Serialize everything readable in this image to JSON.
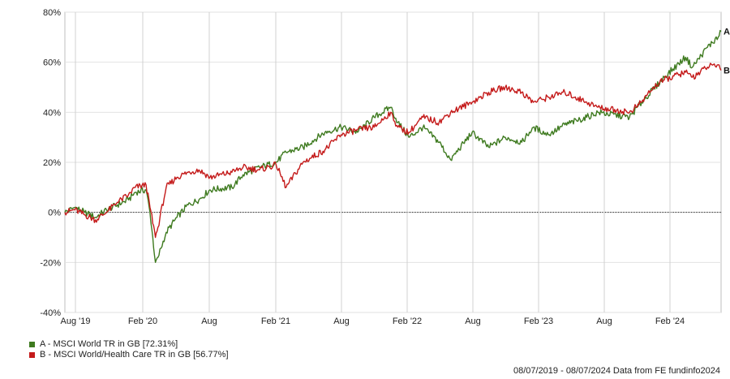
{
  "chart_data": {
    "type": "line",
    "y_unit": "%",
    "ylim": [
      -40,
      80
    ],
    "y_ticks": [
      "80%",
      "60%",
      "40%",
      "20%",
      "0%",
      "-20%",
      "-40%"
    ],
    "x_ticks": [
      "Aug '19",
      "Feb '20",
      "Aug",
      "Feb '21",
      "Aug",
      "Feb '22",
      "Aug",
      "Feb '23",
      "Aug",
      "Feb '24"
    ],
    "x_range": [
      "2019-07-08",
      "2024-07-08"
    ],
    "grid": true,
    "zero_line": "dashed",
    "series": [
      {
        "name": "A - MSCI World TR in GB [72.31%]",
        "end_label": "A",
        "color": "#3e7a1f",
        "points": [
          [
            "2019-07-08",
            0
          ],
          [
            "2019-08-05",
            2
          ],
          [
            "2019-09-01",
            0
          ],
          [
            "2019-10-01",
            -2
          ],
          [
            "2019-11-01",
            1
          ],
          [
            "2019-12-01",
            3
          ],
          [
            "2020-01-01",
            5
          ],
          [
            "2020-01-20",
            8
          ],
          [
            "2020-02-19",
            9
          ],
          [
            "2020-03-01",
            0
          ],
          [
            "2020-03-16",
            -20
          ],
          [
            "2020-03-23",
            -18
          ],
          [
            "2020-04-15",
            -8
          ],
          [
            "2020-05-15",
            -2
          ],
          [
            "2020-06-15",
            3
          ],
          [
            "2020-07-15",
            5
          ],
          [
            "2020-08-15",
            9
          ],
          [
            "2020-10-15",
            10
          ],
          [
            "2020-11-15",
            15
          ],
          [
            "2020-12-31",
            18
          ],
          [
            "2021-02-15",
            20
          ],
          [
            "2021-03-15",
            24
          ],
          [
            "2021-05-01",
            26
          ],
          [
            "2021-07-01",
            32
          ],
          [
            "2021-08-15",
            34
          ],
          [
            "2021-09-30",
            32
          ],
          [
            "2021-11-15",
            38
          ],
          [
            "2021-12-31",
            42
          ],
          [
            "2022-01-20",
            36
          ],
          [
            "2022-02-20",
            30
          ],
          [
            "2022-03-31",
            34
          ],
          [
            "2022-05-15",
            28
          ],
          [
            "2022-06-16",
            21
          ],
          [
            "2022-08-15",
            32
          ],
          [
            "2022-09-30",
            26
          ],
          [
            "2022-11-15",
            30
          ],
          [
            "2022-12-31",
            28
          ],
          [
            "2023-02-01",
            34
          ],
          [
            "2023-03-15",
            31
          ],
          [
            "2023-04-30",
            35
          ],
          [
            "2023-06-30",
            38
          ],
          [
            "2023-07-31",
            40
          ],
          [
            "2023-10-27",
            38
          ],
          [
            "2023-11-30",
            44
          ],
          [
            "2023-12-31",
            49
          ],
          [
            "2024-02-01",
            54
          ],
          [
            "2024-03-31",
            62
          ],
          [
            "2024-04-19",
            58
          ],
          [
            "2024-05-31",
            66
          ],
          [
            "2024-06-30",
            70
          ],
          [
            "2024-07-08",
            72.31
          ]
        ]
      },
      {
        "name": "B - MSCI World/Health Care TR in GB [56.77%]",
        "end_label": "B",
        "color": "#c41a1a",
        "points": [
          [
            "2019-07-08",
            0
          ],
          [
            "2019-08-05",
            1
          ],
          [
            "2019-09-01",
            -1
          ],
          [
            "2019-10-01",
            -3
          ],
          [
            "2019-11-01",
            0
          ],
          [
            "2019-12-01",
            4
          ],
          [
            "2020-01-01",
            7
          ],
          [
            "2020-01-20",
            10
          ],
          [
            "2020-02-19",
            11
          ],
          [
            "2020-03-01",
            2
          ],
          [
            "2020-03-16",
            -10
          ],
          [
            "2020-03-23",
            -6
          ],
          [
            "2020-04-15",
            10
          ],
          [
            "2020-05-15",
            14
          ],
          [
            "2020-06-15",
            16
          ],
          [
            "2020-07-15",
            17
          ],
          [
            "2020-08-15",
            14
          ],
          [
            "2020-10-15",
            16
          ],
          [
            "2020-11-15",
            18
          ],
          [
            "2020-12-31",
            17
          ],
          [
            "2021-02-15",
            19
          ],
          [
            "2021-03-15",
            10
          ],
          [
            "2021-05-01",
            20
          ],
          [
            "2021-07-01",
            25
          ],
          [
            "2021-08-15",
            31
          ],
          [
            "2021-09-30",
            33
          ],
          [
            "2021-11-15",
            34
          ],
          [
            "2021-12-31",
            40
          ],
          [
            "2022-01-20",
            34
          ],
          [
            "2022-02-20",
            32
          ],
          [
            "2022-03-31",
            38
          ],
          [
            "2022-05-15",
            36
          ],
          [
            "2022-06-16",
            40
          ],
          [
            "2022-08-15",
            44
          ],
          [
            "2022-09-30",
            48
          ],
          [
            "2022-11-15",
            50
          ],
          [
            "2022-12-31",
            48
          ],
          [
            "2023-02-01",
            44
          ],
          [
            "2023-03-15",
            46
          ],
          [
            "2023-04-30",
            48
          ],
          [
            "2023-06-30",
            44
          ],
          [
            "2023-07-31",
            42
          ],
          [
            "2023-10-27",
            40
          ],
          [
            "2023-11-30",
            44
          ],
          [
            "2023-12-31",
            50
          ],
          [
            "2024-02-01",
            53
          ],
          [
            "2024-03-31",
            56
          ],
          [
            "2024-04-19",
            54
          ],
          [
            "2024-05-31",
            58
          ],
          [
            "2024-06-30",
            59
          ],
          [
            "2024-07-08",
            56.77
          ]
        ]
      }
    ]
  },
  "legend": [
    {
      "label": "A - MSCI World TR in GB [72.31%]",
      "color": "#3e7a1f"
    },
    {
      "label": "B - MSCI World/Health Care TR in GB [56.77%]",
      "color": "#c41a1a"
    }
  ],
  "footer": "08/07/2019 - 08/07/2024 Data from FE fundinfo2024"
}
